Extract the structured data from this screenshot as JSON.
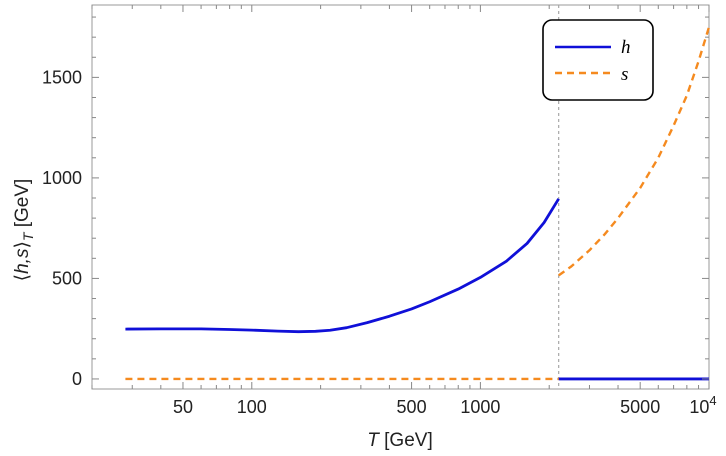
{
  "chart_data": {
    "type": "line",
    "xscale": "log",
    "xlim": [
      20,
      10000
    ],
    "ylim": [
      -50,
      1860
    ],
    "xlabel": {
      "var": "T",
      "unit": " [GeV]"
    },
    "ylabel": {
      "prefix": "⟨",
      "var": "h,s",
      "suffix": "⟩",
      "sub": "T",
      "unit": " [GeV]"
    },
    "x_ticks": [
      {
        "value": 50,
        "label": "50"
      },
      {
        "value": 100,
        "label": "100"
      },
      {
        "value": 500,
        "label": "500"
      },
      {
        "value": 1000,
        "label": "1000"
      },
      {
        "value": 5000,
        "label": "5000"
      },
      {
        "value": 10000,
        "label": "10",
        "sup": "4"
      }
    ],
    "y_ticks": [
      {
        "value": 0,
        "label": "0"
      },
      {
        "value": 500,
        "label": "500"
      },
      {
        "value": 1000,
        "label": "1000"
      },
      {
        "value": 1500,
        "label": "1500"
      }
    ],
    "transition_T": 2200,
    "series": [
      {
        "name": "h",
        "color": "#1010d8",
        "dash": "solid",
        "segments": [
          {
            "x": [
              28,
              40,
              60,
              80,
              100,
              130,
              160,
              190,
              220,
              260,
              320,
              400,
              500,
              600,
              800,
              1000,
              1300,
              1600,
              1900,
              2200
            ],
            "y": [
              248,
              249,
              249,
              246,
              243,
              238,
              235,
              237,
              242,
              255,
              280,
              312,
              348,
              384,
              447,
              505,
              586,
              674,
              778,
              896
            ]
          },
          {
            "x": [
              2200,
              10000
            ],
            "y": [
              0,
              0
            ]
          }
        ]
      },
      {
        "name": "s",
        "color": "#f58a1f",
        "dash": "dashed",
        "segments": [
          {
            "x": [
              28,
              2200
            ],
            "y": [
              0,
              0
            ]
          },
          {
            "x": [
              2200,
              2500,
              3000,
              3500,
              4000,
              5000,
              6000,
              7000,
              8000,
              9000,
              10000
            ],
            "y": [
              515,
              560,
              640,
              720,
              800,
              950,
              1100,
              1260,
              1410,
              1580,
              1750
            ]
          }
        ]
      }
    ],
    "legend": {
      "position": "top-right"
    }
  }
}
